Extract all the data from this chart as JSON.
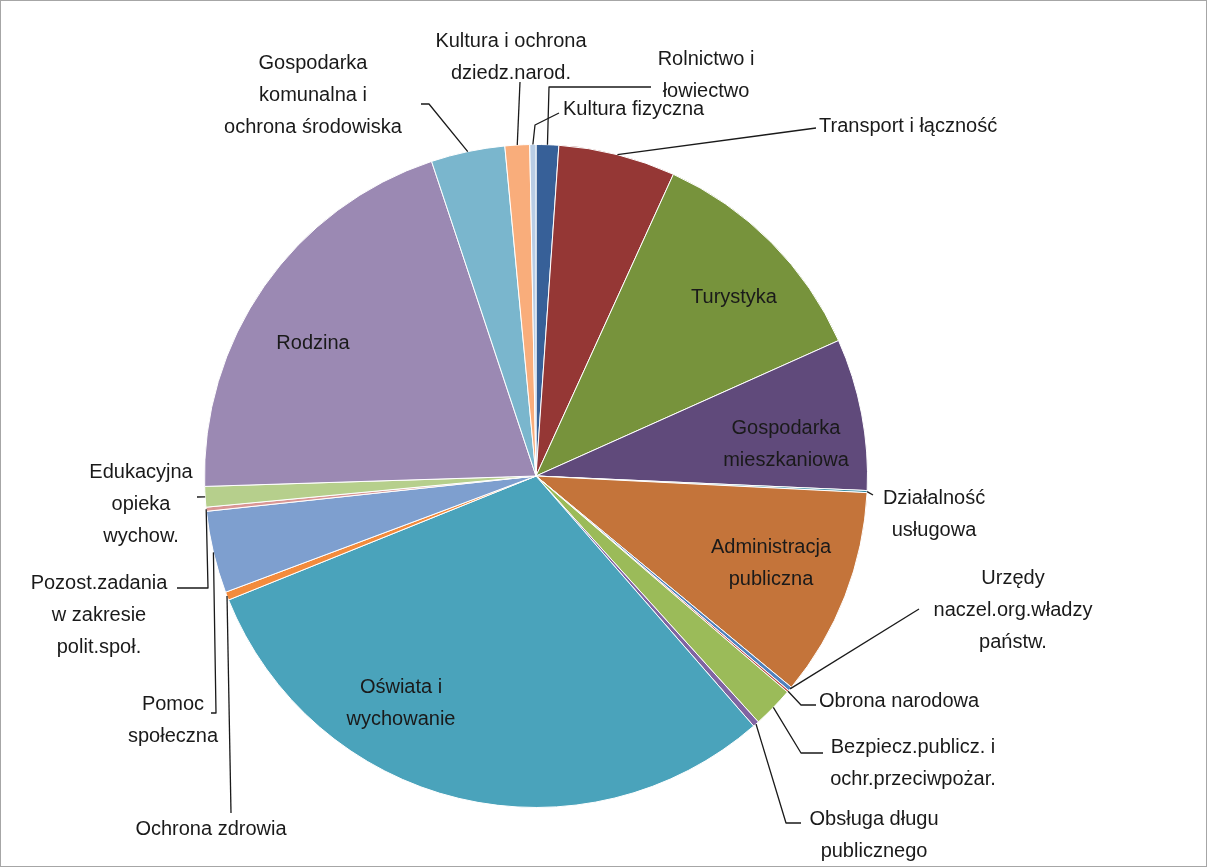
{
  "chart_data": {
    "type": "pie",
    "categories": [
      "Rolnictwo i łowiectwo",
      "Transport i łączność",
      "Turystyka",
      "Gospodarka mieszkaniowa",
      "Działalność usługowa",
      "Administracja publiczna",
      "Urzędy naczel.org.władzy państw.",
      "Obrona narodowa",
      "Bezpiecz.publicz. i ochr.przeciwpożar.",
      "Obsługa długu publicznego",
      "Oświata i wychowanie",
      "Ochrona zdrowia",
      "Pomoc społeczna",
      "Pozost.zadania w zakresie polit.społ.",
      "Edukacyjna opieka wychow.",
      "Rodzina",
      "Gospodarka komunalna i ochrona środowiska",
      "Kultura i ochrona dziedz.narod.",
      "Kultura fizyczna"
    ],
    "values": [
      1.1,
      5.7,
      11.5,
      7.4,
      0.1,
      10.2,
      0.2,
      0.1,
      2,
      0.3,
      30.3,
      0.4,
      4,
      0.2,
      1,
      20.4,
      3.6,
      1.2,
      0.3
    ],
    "colors": [
      "#376098",
      "#953735",
      "#77933c",
      "#604a7b",
      "#31859c",
      "#c4743a",
      "#4f81bd",
      "#c0504d",
      "#9bbb59",
      "#8064a2",
      "#4aa3bb",
      "#f38b3c",
      "#7e9fcf",
      "#d99694",
      "#b6cf8c",
      "#9b89b3",
      "#7ab6cd",
      "#f9ad7b",
      "#b9cde5"
    ]
  }
}
